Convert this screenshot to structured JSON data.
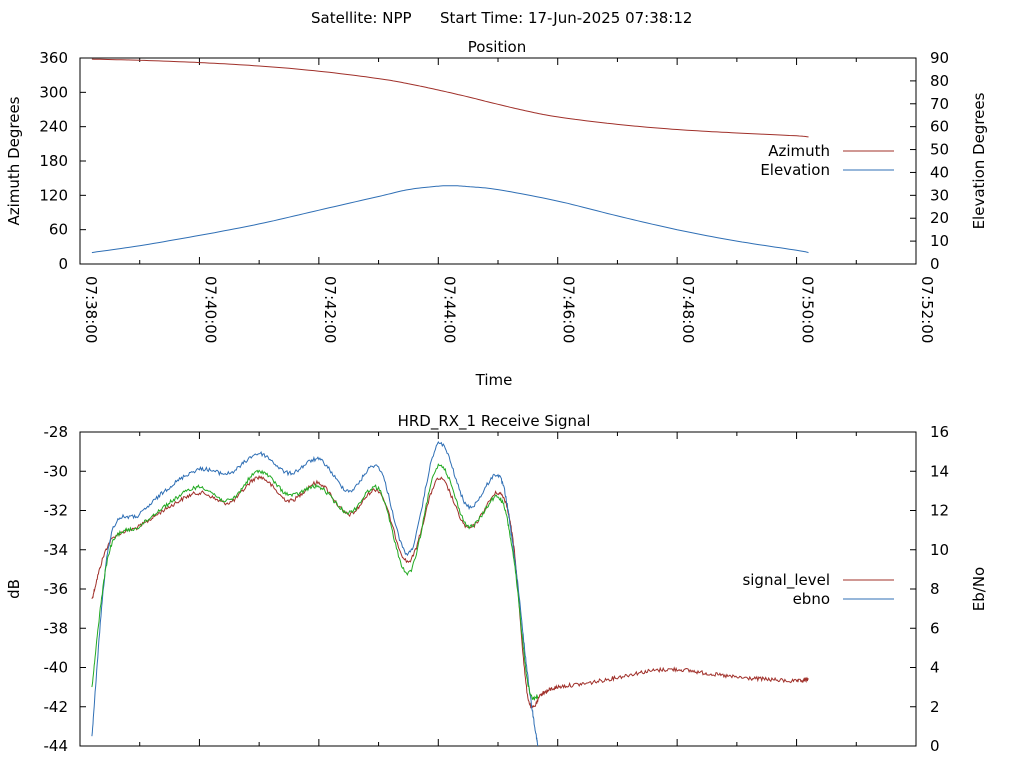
{
  "header": {
    "satellite": "Satellite: NPP",
    "start_time": "Start Time: 17-Jun-2025 07:38:12"
  },
  "chart_data": [
    {
      "type": "line",
      "title": "Position",
      "xlabel": "Time",
      "ylabel": "Azimuth Degrees",
      "y2label": "Elevation Degrees",
      "xlim": [
        "07:38:00",
        "07:52:00"
      ],
      "ylim": [
        0,
        360
      ],
      "y2lim": [
        0,
        90
      ],
      "x_ticks": [
        "07:38:00",
        "07:40:00",
        "07:42:00",
        "07:44:00",
        "07:46:00",
        "07:48:00",
        "07:50:00",
        "07:52:00"
      ],
      "y_ticks": [
        "0",
        "60",
        "120",
        "180",
        "240",
        "300",
        "360"
      ],
      "y2_ticks": [
        "0",
        "10",
        "20",
        "30",
        "40",
        "50",
        "60",
        "70",
        "80",
        "90"
      ],
      "legend_position": "right",
      "series": [
        {
          "name": "Azimuth",
          "axis": "y",
          "color": "#a0302a",
          "x": [
            "07:38:12",
            "07:39:00",
            "07:40:00",
            "07:41:00",
            "07:42:00",
            "07:43:00",
            "07:43:30",
            "07:44:00",
            "07:44:30",
            "07:45:00",
            "07:45:30",
            "07:46:00",
            "07:47:00",
            "07:48:00",
            "07:49:00",
            "07:50:00",
            "07:50:12"
          ],
          "values": [
            358,
            356,
            352,
            346,
            337,
            324,
            315,
            304,
            292,
            279,
            267,
            257,
            244,
            235,
            229,
            224,
            222
          ]
        },
        {
          "name": "Elevation",
          "axis": "y2",
          "color": "#2f6fb5",
          "x": [
            "07:38:12",
            "07:39:00",
            "07:40:00",
            "07:41:00",
            "07:42:00",
            "07:43:00",
            "07:43:30",
            "07:44:00",
            "07:44:15",
            "07:44:30",
            "07:45:00",
            "07:46:00",
            "07:47:00",
            "07:48:00",
            "07:49:00",
            "07:50:00",
            "07:50:12"
          ],
          "values": [
            5,
            8,
            12.5,
            17.5,
            23.5,
            29.5,
            32.5,
            34,
            34.2,
            33.8,
            32.5,
            27.5,
            21,
            15,
            10,
            6,
            5
          ]
        }
      ]
    },
    {
      "type": "line",
      "title": "HRD_RX_1 Receive Signal",
      "xlabel": "",
      "ylabel": "dB",
      "y2label": "Eb/No",
      "xlim": [
        "07:38:00",
        "07:52:00"
      ],
      "ylim": [
        -44,
        -28
      ],
      "y2lim": [
        0,
        16
      ],
      "y_ticks": [
        "-44",
        "-42",
        "-40",
        "-38",
        "-36",
        "-34",
        "-32",
        "-30",
        "-28"
      ],
      "y2_ticks": [
        "0",
        "2",
        "4",
        "6",
        "8",
        "10",
        "12",
        "14",
        "16"
      ],
      "legend_position": "right",
      "series": [
        {
          "name": "signal_level",
          "axis": "y",
          "color": "#a0302a",
          "x": [
            "07:38:12",
            "07:38:30",
            "07:39:00",
            "07:39:30",
            "07:40:00",
            "07:40:30",
            "07:41:00",
            "07:41:30",
            "07:42:00",
            "07:42:30",
            "07:43:00",
            "07:43:30",
            "07:44:00",
            "07:44:30",
            "07:45:00",
            "07:45:15",
            "07:45:30",
            "07:45:45",
            "07:46:00",
            "07:46:30",
            "07:47:00",
            "07:47:30",
            "07:48:00",
            "07:48:30",
            "07:49:00",
            "07:49:30",
            "07:50:00",
            "07:50:12"
          ],
          "values": [
            -36.5,
            -33.6,
            -32.8,
            -31.8,
            -31.1,
            -31.6,
            -30.3,
            -31.5,
            -30.6,
            -32.2,
            -31.0,
            -34.6,
            -30.4,
            -32.9,
            -31.1,
            -33.5,
            -41.5,
            -41.3,
            -41.0,
            -40.8,
            -40.5,
            -40.2,
            -40.1,
            -40.3,
            -40.5,
            -40.6,
            -40.7,
            -40.6
          ]
        },
        {
          "name": "ebno",
          "axis": "y2",
          "color": "#2f6fb5",
          "x": [
            "07:38:12",
            "07:38:30",
            "07:39:00",
            "07:39:30",
            "07:40:00",
            "07:40:30",
            "07:41:00",
            "07:41:30",
            "07:42:00",
            "07:42:30",
            "07:43:00",
            "07:43:30",
            "07:44:00",
            "07:44:30",
            "07:45:00",
            "07:45:15",
            "07:45:30",
            "07:45:40"
          ],
          "values": [
            0.5,
            10.5,
            11.8,
            13.2,
            14.1,
            13.9,
            14.9,
            13.9,
            14.6,
            13.0,
            14.2,
            9.8,
            15.4,
            12.2,
            13.8,
            10.2,
            3.5,
            0
          ]
        },
        {
          "name": "",
          "axis": "y2",
          "color": "#22aa22",
          "x": [
            "07:38:12",
            "07:38:30",
            "07:39:00",
            "07:39:30",
            "07:40:00",
            "07:40:30",
            "07:41:00",
            "07:41:30",
            "07:42:00",
            "07:42:30",
            "07:43:00",
            "07:43:30",
            "07:44:00",
            "07:44:30",
            "07:45:00",
            "07:45:15",
            "07:45:30",
            "07:45:40"
          ],
          "values": [
            3.0,
            10.0,
            11.2,
            12.4,
            13.2,
            12.5,
            14.0,
            12.8,
            13.2,
            11.9,
            13.1,
            8.8,
            14.3,
            11.2,
            12.7,
            9.8,
            3.2,
            2.5
          ]
        }
      ]
    }
  ]
}
